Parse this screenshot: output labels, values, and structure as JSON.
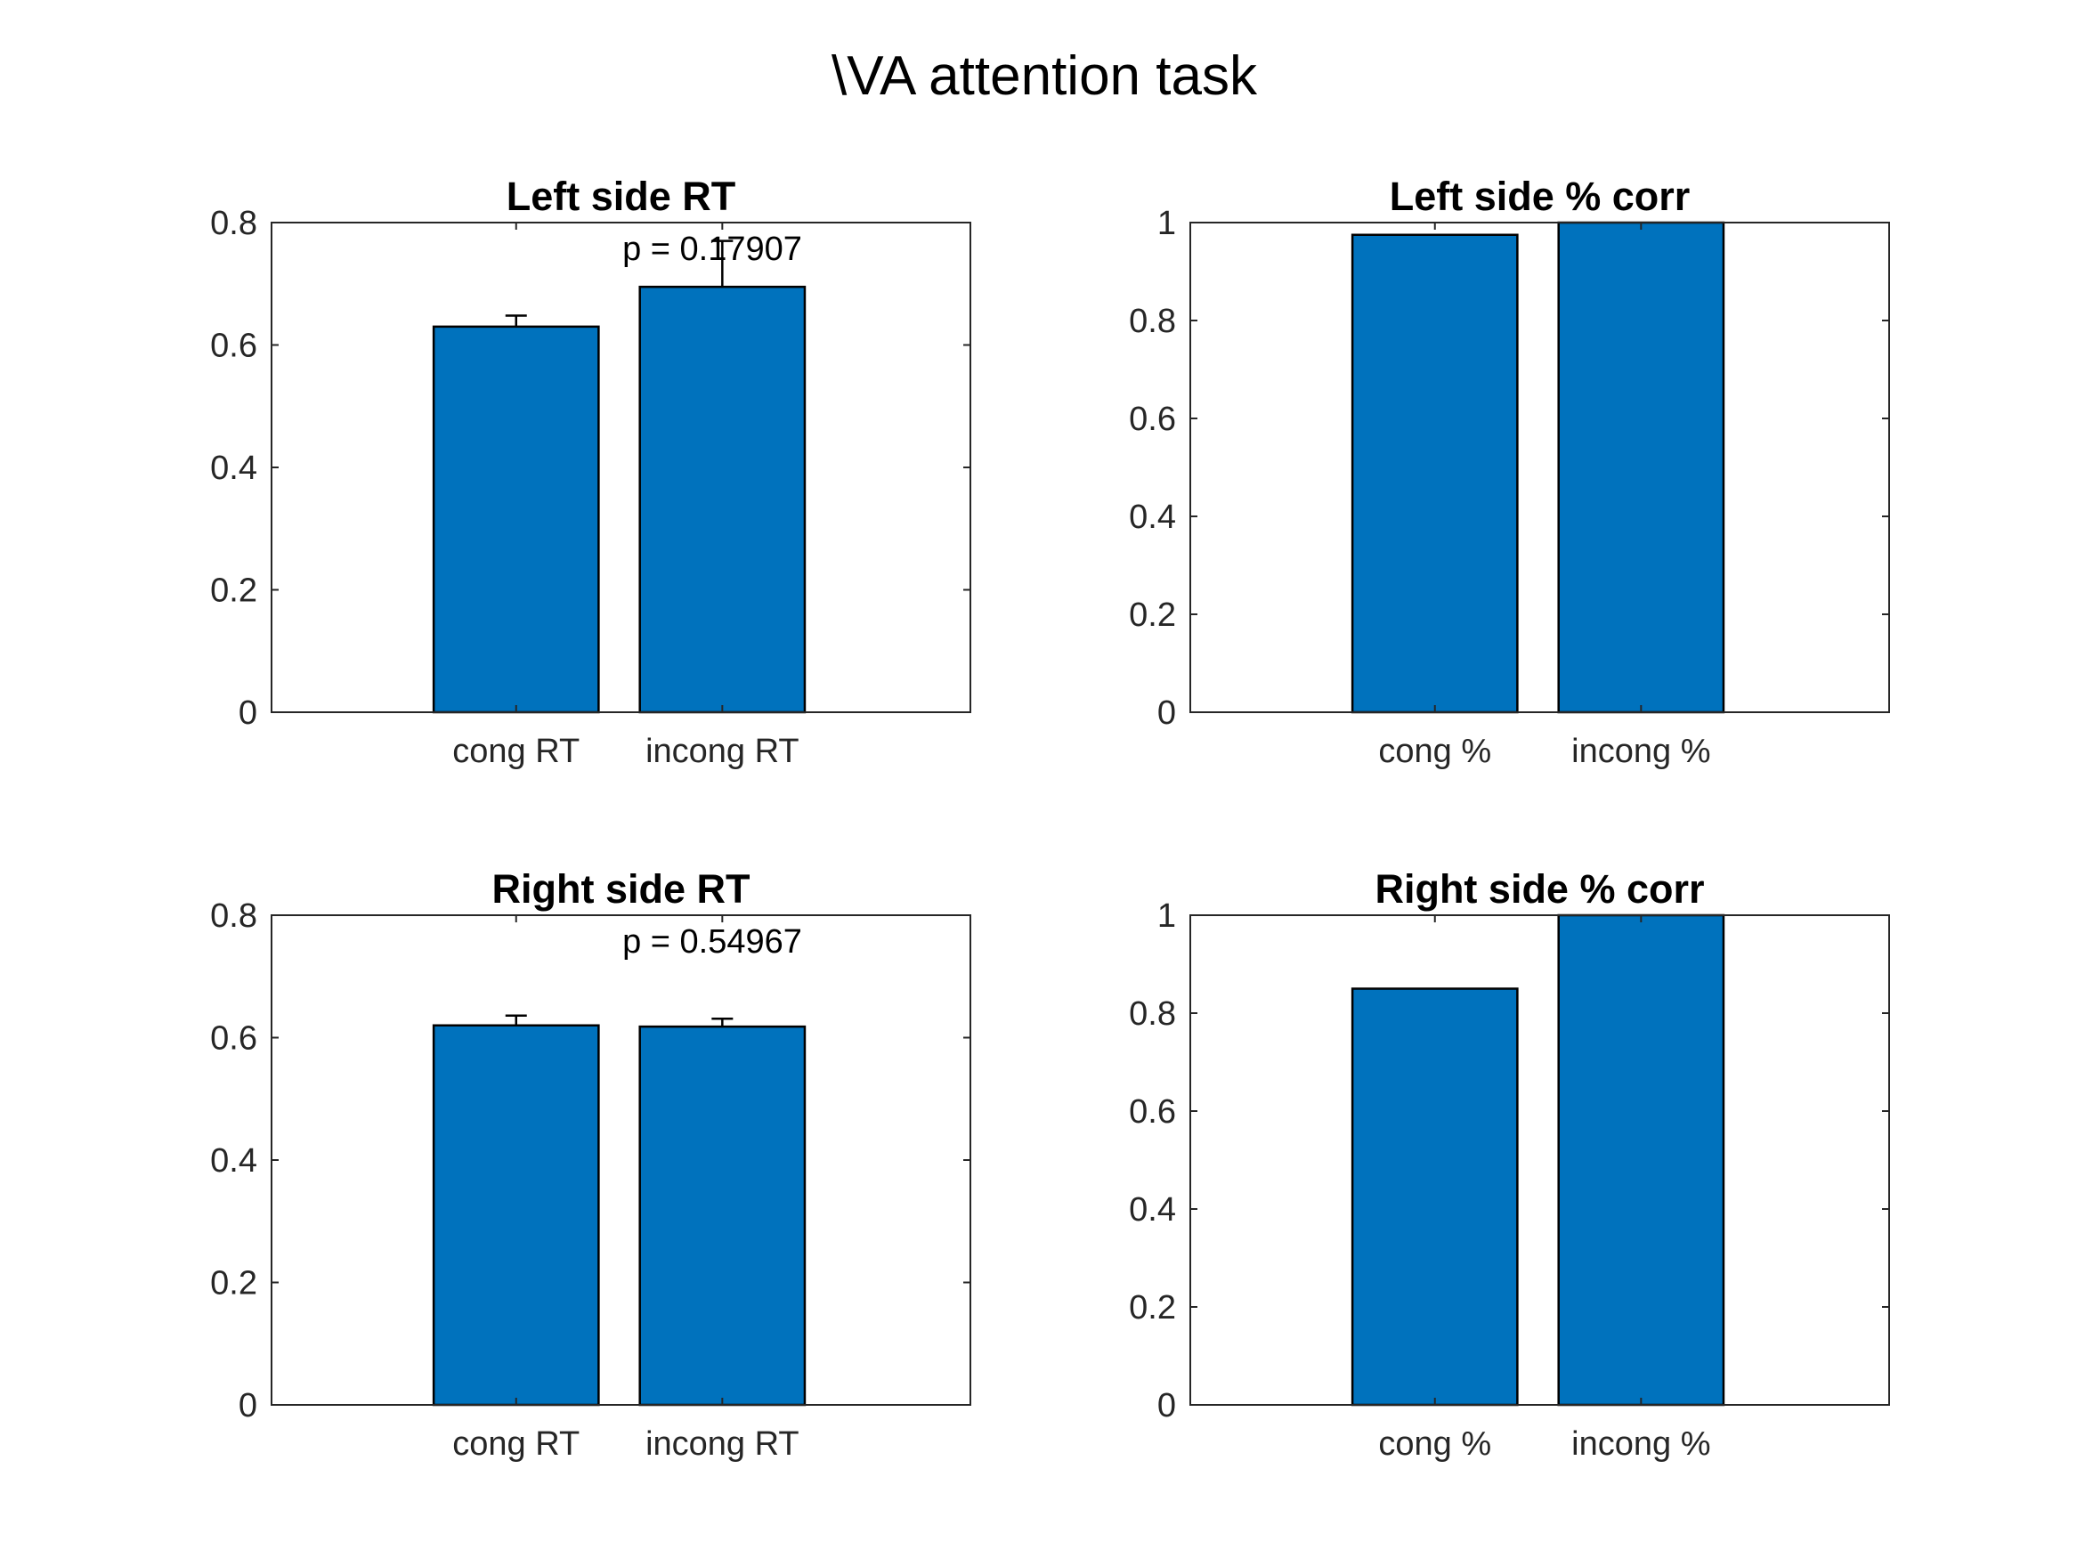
{
  "figure_title": "\\VA attention task",
  "colors": {
    "bar": "#0072bd",
    "axis": "#262626",
    "background": "#ffffff"
  },
  "chart_data": [
    {
      "type": "bar",
      "title": "Left side RT",
      "categories": [
        "cong RT",
        "incong RT"
      ],
      "values": [
        0.63,
        0.695
      ],
      "error_upper": [
        0.018,
        0.075
      ],
      "annotation": "p = 0.17907",
      "ylim": [
        0,
        0.8
      ],
      "yticks": [
        "0",
        "0.2",
        "0.4",
        "0.6",
        "0.8"
      ],
      "ytick_values": [
        0,
        0.2,
        0.4,
        0.6,
        0.8
      ],
      "xlabel": "",
      "ylabel": ""
    },
    {
      "type": "bar",
      "title": "Left side % corr",
      "categories": [
        "cong %",
        "incong %"
      ],
      "values": [
        0.975,
        1.0
      ],
      "ylim": [
        0,
        1
      ],
      "yticks": [
        "0",
        "0.2",
        "0.4",
        "0.6",
        "0.8",
        "1"
      ],
      "ytick_values": [
        0,
        0.2,
        0.4,
        0.6,
        0.8,
        1.0
      ],
      "xlabel": "",
      "ylabel": ""
    },
    {
      "type": "bar",
      "title": "Right side RT",
      "categories": [
        "cong RT",
        "incong RT"
      ],
      "values": [
        0.62,
        0.618
      ],
      "error_upper": [
        0.016,
        0.013
      ],
      "annotation": "p = 0.54967",
      "ylim": [
        0,
        0.8
      ],
      "yticks": [
        "0",
        "0.2",
        "0.4",
        "0.6",
        "0.8"
      ],
      "ytick_values": [
        0,
        0.2,
        0.4,
        0.6,
        0.8
      ],
      "xlabel": "",
      "ylabel": ""
    },
    {
      "type": "bar",
      "title": "Right side % corr",
      "categories": [
        "cong %",
        "incong %"
      ],
      "values": [
        0.85,
        1.0
      ],
      "ylim": [
        0,
        1
      ],
      "yticks": [
        "0",
        "0.2",
        "0.4",
        "0.6",
        "0.8",
        "1"
      ],
      "ytick_values": [
        0,
        0.2,
        0.4,
        0.6,
        0.8,
        1.0
      ],
      "xlabel": "",
      "ylabel": ""
    }
  ]
}
